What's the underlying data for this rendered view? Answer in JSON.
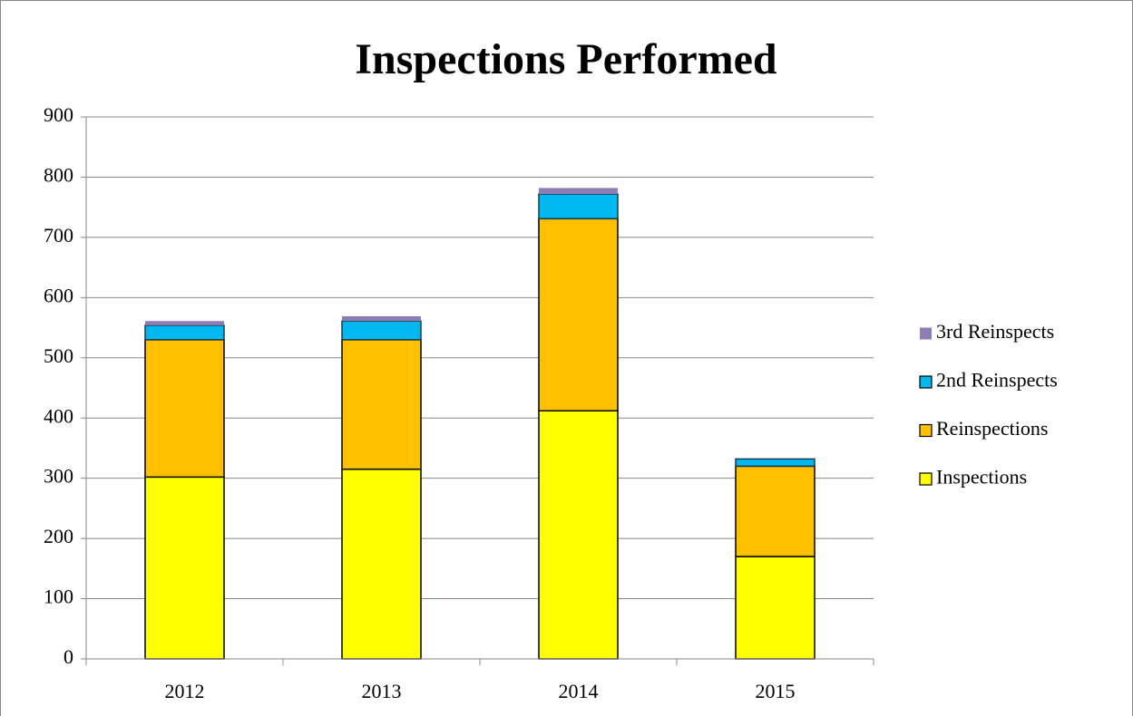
{
  "chart_data": {
    "type": "stacked_bar",
    "title": "Inspections Performed",
    "categories": [
      "2012",
      "2013",
      "2014",
      "2015"
    ],
    "series": [
      {
        "name": "Inspections",
        "color": "#ffff00",
        "edgecolor": "#000000",
        "values": [
          302,
          315,
          412,
          170
        ]
      },
      {
        "name": "Reinspections",
        "color": "#ffc000",
        "edgecolor": "#000000",
        "values": [
          228,
          215,
          319,
          150
        ]
      },
      {
        "name": "2nd Reinspects",
        "color": "#00b8f0",
        "edgecolor": "#1a3a4a",
        "values": [
          24,
          31,
          41,
          12
        ]
      },
      {
        "name": "3rd Reinspects",
        "color": "#8e7cb4",
        "values": [
          7,
          8,
          10,
          0
        ]
      }
    ],
    "ylim": [
      0,
      900
    ],
    "yticks": [
      0,
      100,
      200,
      300,
      400,
      500,
      600,
      700,
      800,
      900
    ],
    "grid": true,
    "legend": "right"
  }
}
